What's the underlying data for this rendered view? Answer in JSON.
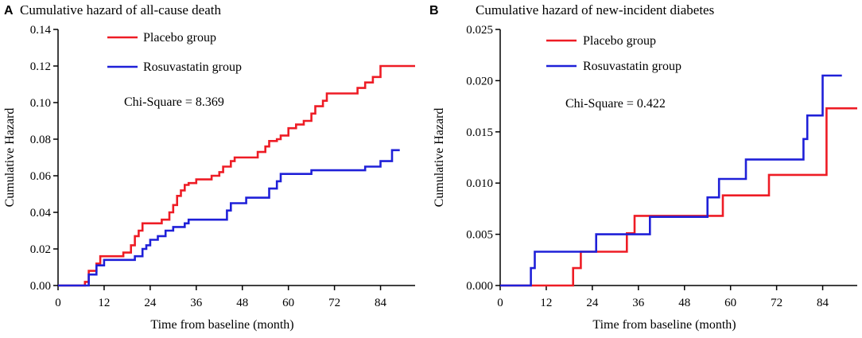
{
  "chart_data": [
    {
      "type": "line",
      "step": true,
      "panel": "A",
      "title": "Cumulative hazard of all-cause death",
      "xlabel": "Time from baseline (month)",
      "ylabel": "Cumulative Hazard",
      "xlim": [
        0,
        93
      ],
      "ylim": [
        0,
        0.14
      ],
      "xticks": [
        0,
        12,
        24,
        36,
        48,
        60,
        72,
        84
      ],
      "xtick_labels": [
        "0",
        "12",
        "24",
        "36",
        "48",
        "60",
        "72",
        "84"
      ],
      "yticks": [
        0,
        0.02,
        0.04,
        0.06,
        0.08,
        0.1,
        0.12,
        0.14
      ],
      "ytick_labels": [
        "0.00",
        "0.02",
        "0.04",
        "0.06",
        "0.08",
        "0.10",
        "0.12",
        "0.14"
      ],
      "annotation": "Chi-Square = 8.369",
      "legend_position": "top-center",
      "series": [
        {
          "name": "Placebo group",
          "color": "#ee1c25",
          "points": [
            [
              0,
              0
            ],
            [
              7,
              0.002
            ],
            [
              8,
              0.008
            ],
            [
              10,
              0.012
            ],
            [
              11,
              0.016
            ],
            [
              17,
              0.018
            ],
            [
              19,
              0.022
            ],
            [
              20,
              0.027
            ],
            [
              21,
              0.03
            ],
            [
              22,
              0.034
            ],
            [
              27,
              0.036
            ],
            [
              29,
              0.04
            ],
            [
              30,
              0.044
            ],
            [
              31,
              0.049
            ],
            [
              32,
              0.052
            ],
            [
              33,
              0.055
            ],
            [
              34,
              0.056
            ],
            [
              36,
              0.058
            ],
            [
              40,
              0.06
            ],
            [
              42,
              0.062
            ],
            [
              43,
              0.065
            ],
            [
              45,
              0.068
            ],
            [
              46,
              0.07
            ],
            [
              52,
              0.073
            ],
            [
              54,
              0.076
            ],
            [
              55,
              0.079
            ],
            [
              57,
              0.08
            ],
            [
              58,
              0.082
            ],
            [
              60,
              0.086
            ],
            [
              62,
              0.088
            ],
            [
              64,
              0.09
            ],
            [
              66,
              0.094
            ],
            [
              67,
              0.098
            ],
            [
              69,
              0.101
            ],
            [
              70,
              0.105
            ],
            [
              78,
              0.108
            ],
            [
              80,
              0.111
            ],
            [
              82,
              0.114
            ],
            [
              84,
              0.12
            ],
            [
              93,
              0.12
            ]
          ]
        },
        {
          "name": "Rosuvastatin group",
          "color": "#1f20d8",
          "points": [
            [
              0,
              0
            ],
            [
              8,
              0.006
            ],
            [
              10,
              0.011
            ],
            [
              12,
              0.014
            ],
            [
              20,
              0.016
            ],
            [
              22,
              0.02
            ],
            [
              23,
              0.022
            ],
            [
              24,
              0.025
            ],
            [
              26,
              0.027
            ],
            [
              28,
              0.03
            ],
            [
              30,
              0.032
            ],
            [
              33,
              0.034
            ],
            [
              34,
              0.036
            ],
            [
              44,
              0.041
            ],
            [
              45,
              0.045
            ],
            [
              49,
              0.048
            ],
            [
              55,
              0.053
            ],
            [
              57,
              0.057
            ],
            [
              58,
              0.061
            ],
            [
              66,
              0.063
            ],
            [
              80,
              0.065
            ],
            [
              84,
              0.068
            ],
            [
              87,
              0.074
            ],
            [
              89,
              0.074
            ]
          ]
        }
      ]
    },
    {
      "type": "line",
      "step": true,
      "panel": "B",
      "title": "Cumulative hazard of new-incident diabetes",
      "xlabel": "Time from baseline (month)",
      "ylabel": "Cumulative Hazard",
      "xlim": [
        0,
        93
      ],
      "ylim": [
        0,
        0.025
      ],
      "xticks": [
        0,
        12,
        24,
        36,
        48,
        60,
        72,
        84
      ],
      "xtick_labels": [
        "0",
        "12",
        "24",
        "36",
        "48",
        "60",
        "72",
        "84"
      ],
      "yticks": [
        0,
        0.005,
        0.01,
        0.015,
        0.02,
        0.025
      ],
      "ytick_labels": [
        "0.000",
        "0.005",
        "0.010",
        "0.015",
        "0.020",
        "0.025"
      ],
      "annotation": "Chi-Square = 0.422",
      "legend_position": "top-center",
      "series": [
        {
          "name": "Placebo group",
          "color": "#ee1c25",
          "points": [
            [
              0,
              0
            ],
            [
              19,
              0.0017
            ],
            [
              21,
              0.0033
            ],
            [
              33,
              0.0051
            ],
            [
              35,
              0.0068
            ],
            [
              58,
              0.0088
            ],
            [
              70,
              0.0108
            ],
            [
              85,
              0.0173
            ],
            [
              93,
              0.0173
            ]
          ]
        },
        {
          "name": "Rosuvastatin group",
          "color": "#1f20d8",
          "points": [
            [
              0,
              0
            ],
            [
              8,
              0.0017
            ],
            [
              9,
              0.0033
            ],
            [
              25,
              0.005
            ],
            [
              39,
              0.0067
            ],
            [
              54,
              0.0086
            ],
            [
              57,
              0.0104
            ],
            [
              64,
              0.0123
            ],
            [
              79,
              0.0143
            ],
            [
              80,
              0.0166
            ],
            [
              84,
              0.0205
            ],
            [
              89,
              0.0205
            ]
          ]
        }
      ]
    }
  ]
}
